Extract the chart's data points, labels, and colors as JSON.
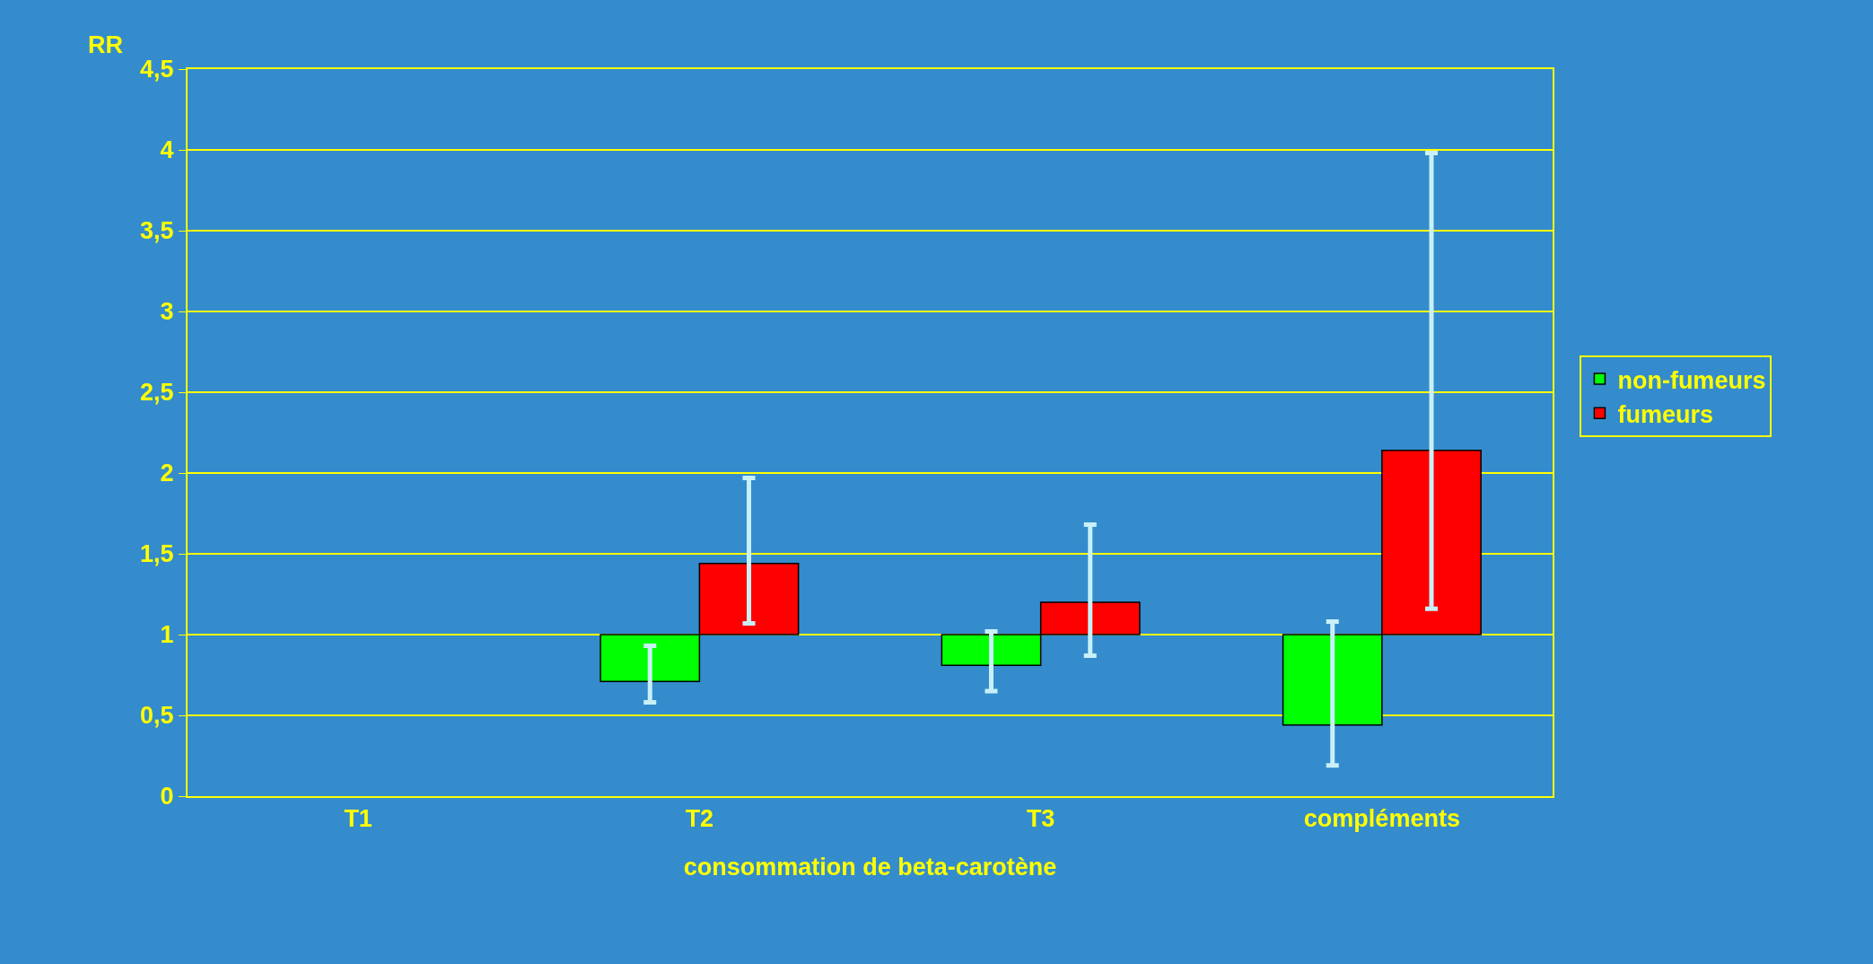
{
  "chart_data": {
    "type": "bar",
    "xlabel": "consommation de beta-carotène",
    "ylabel": "RR",
    "categories": [
      "T1",
      "T2",
      "T3",
      "compléments"
    ],
    "series": [
      {
        "name": "non-fumeurs",
        "color": "#00ff00",
        "base": [
          null,
          1,
          1,
          1
        ],
        "values": [
          null,
          -0.29,
          -0.19,
          -0.56
        ],
        "errors": [
          null,
          [
            0.58,
            0.93
          ],
          [
            0.65,
            1.02
          ],
          [
            0.19,
            1.08
          ]
        ]
      },
      {
        "name": "fumeurs",
        "color": "#ff0000",
        "base": [
          null,
          1,
          1,
          1
        ],
        "values": [
          null,
          0.44,
          0.2,
          1.14
        ],
        "errors": [
          null,
          [
            1.07,
            1.97
          ],
          [
            0.87,
            1.68
          ],
          [
            1.16,
            3.98
          ]
        ]
      }
    ],
    "ylim": [
      0,
      4.5
    ],
    "yticks": [
      0,
      {
        "value": 0.5,
        "label": "0,5"
      },
      1,
      {
        "value": 1.5,
        "label": "1,5"
      },
      2,
      {
        "value": 2.5,
        "label": "2,5"
      },
      3,
      {
        "value": 3.5,
        "label": "3,5"
      },
      4,
      {
        "value": 4.5,
        "label": "4,5"
      }
    ],
    "grid": "y",
    "legend": "right"
  }
}
